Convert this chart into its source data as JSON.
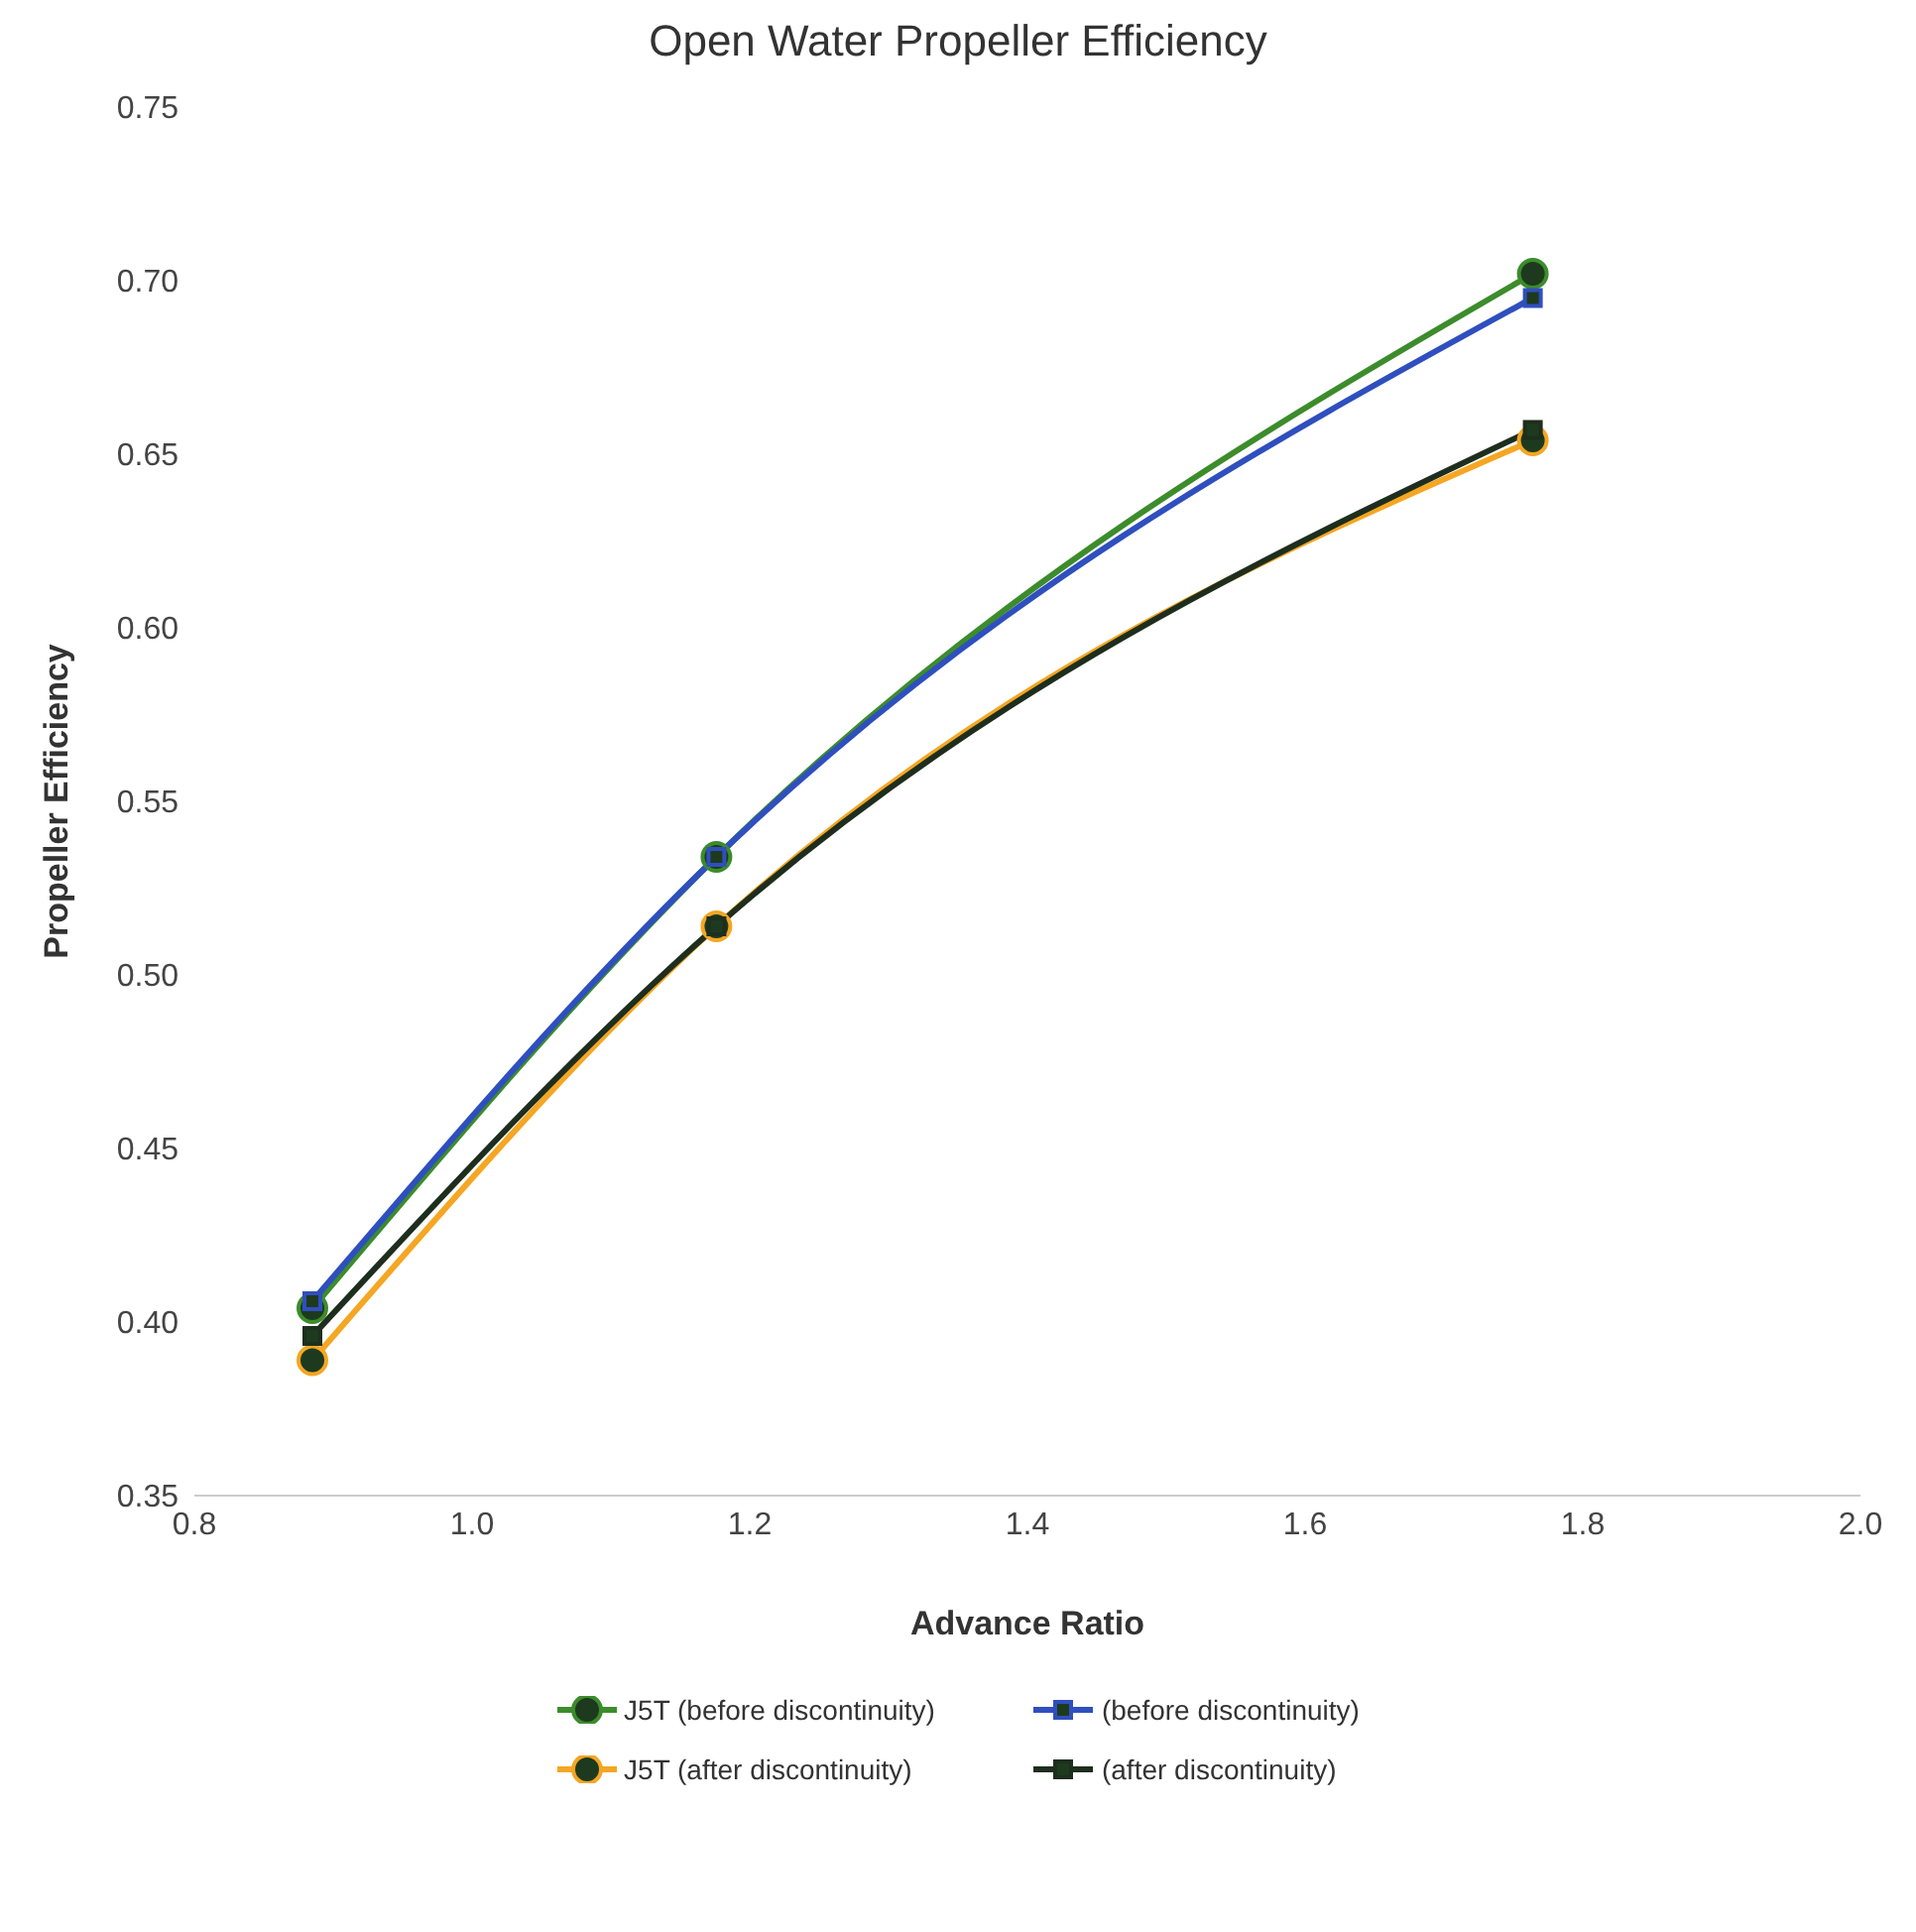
{
  "chart_data": {
    "type": "line",
    "title": "Open Water Propeller Efficiency",
    "xlabel": "Advance Ratio",
    "ylabel": "Propeller Efficiency",
    "x": [
      0.885,
      1.176,
      1.764
    ],
    "xlim": [
      0.8,
      2.0
    ],
    "xticks": [
      {
        "value": 0.8,
        "label": "0.8"
      },
      {
        "value": 1.0,
        "label": "1.0"
      },
      {
        "value": 1.2,
        "label": "1.2"
      },
      {
        "value": 1.4,
        "label": "1.4"
      },
      {
        "value": 1.6,
        "label": "1.6"
      },
      {
        "value": 1.8,
        "label": "1.8"
      },
      {
        "value": 2.0,
        "label": "2.0"
      }
    ],
    "ylim": [
      0.35,
      0.75
    ],
    "yticks": [
      {
        "value": 0.35,
        "label": "0.35"
      },
      {
        "value": 0.4,
        "label": "0.40"
      },
      {
        "value": 0.45,
        "label": "0.45"
      },
      {
        "value": 0.5,
        "label": "0.50"
      },
      {
        "value": 0.55,
        "label": "0.55"
      },
      {
        "value": 0.6,
        "label": "0.60"
      },
      {
        "value": 0.65,
        "label": "0.65"
      },
      {
        "value": 0.7,
        "label": "0.70"
      },
      {
        "value": 0.75,
        "label": "0.75"
      }
    ],
    "grid": false,
    "legend": "bottom",
    "series": [
      {
        "name": "J5T (before discontinuity)",
        "color": "#3c8c2c",
        "marker": "circle",
        "values": [
          0.404,
          0.534,
          0.702
        ]
      },
      {
        "name": "(before discontinuity)",
        "color": "#2f4fbf",
        "marker": "square",
        "values": [
          0.406,
          0.534,
          0.695
        ]
      },
      {
        "name": "J5T (after discontinuity)",
        "color": "#f5a623",
        "marker": "circle",
        "values": [
          0.389,
          0.514,
          0.654
        ]
      },
      {
        "name": "(after discontinuity)",
        "color": "#1e2e1e",
        "marker": "square",
        "values": [
          0.396,
          0.514,
          0.657
        ]
      }
    ]
  }
}
